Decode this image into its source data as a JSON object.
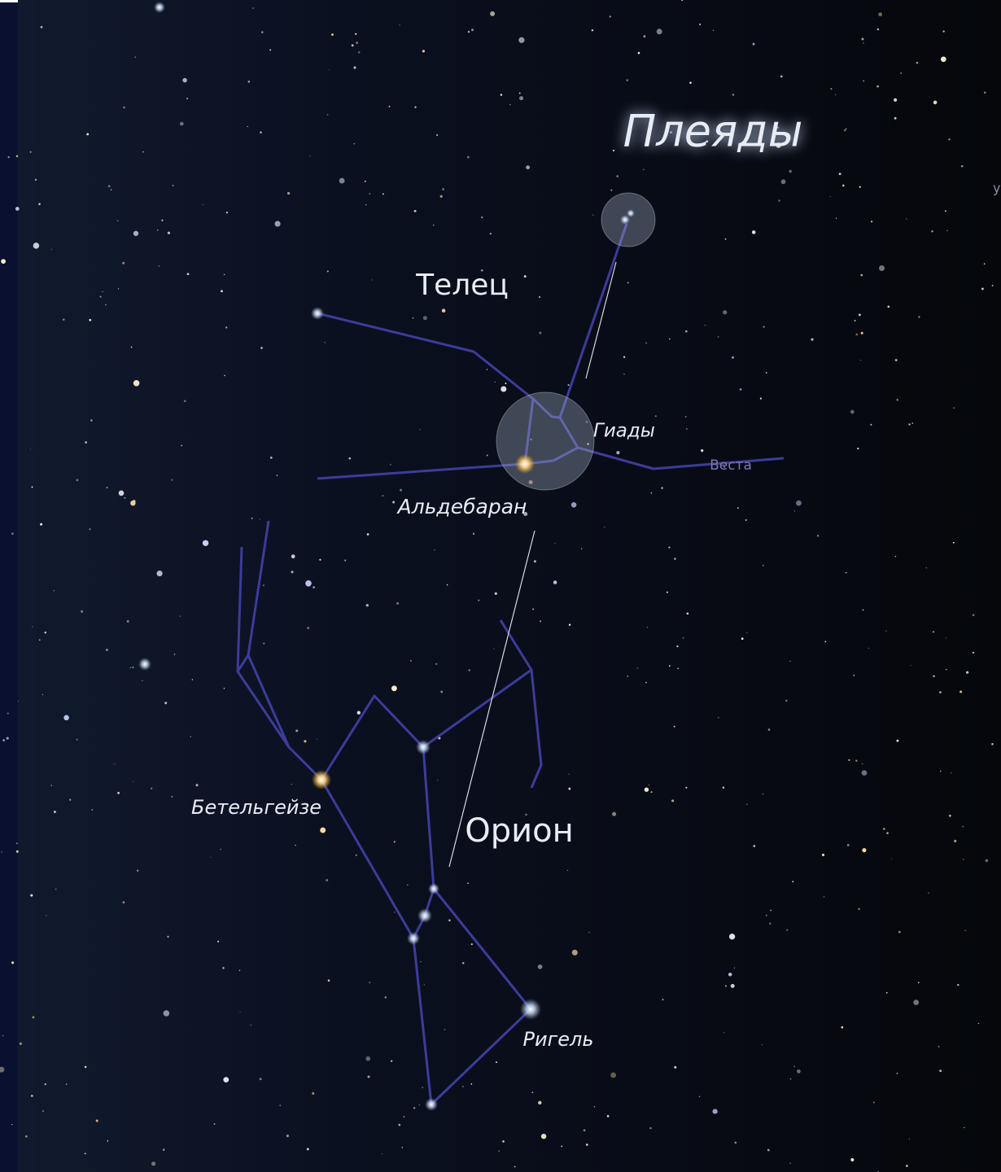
{
  "labels": {
    "pleiades": "Плеяды",
    "taurus": "Телец",
    "hyades": "Гиады",
    "aldebaran": "Альдебаран",
    "vesta": "Веста",
    "betelgeuse": "Бетельгейзе",
    "orion": "Орион",
    "rigel": "Ригель",
    "edge": "у"
  }
}
